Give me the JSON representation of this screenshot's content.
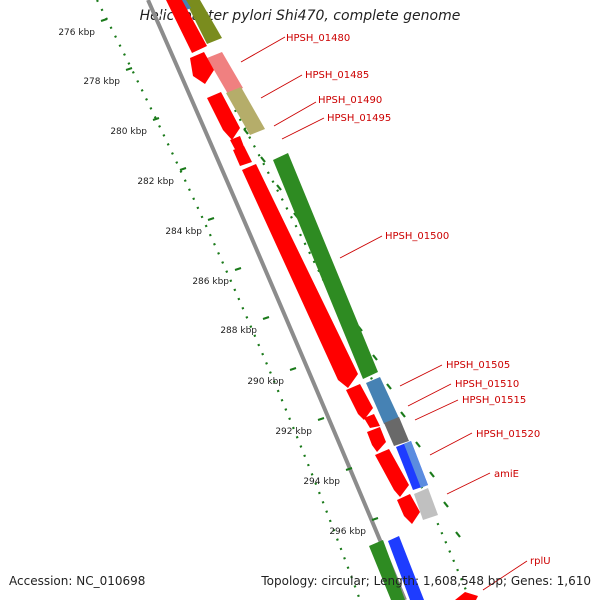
{
  "title": "Helicobacter pylori Shi470, complete genome",
  "footer": {
    "accession": "Accession: NC_010698",
    "summary": "Topology: circular; Length: 1,608,548 bp; Genes: 1,610"
  },
  "axis": {
    "unit": "kbp",
    "ticks": [
      {
        "label": "276 kbp",
        "kbp": 276
      },
      {
        "label": "278 kbp",
        "kbp": 278
      },
      {
        "label": "280 kbp",
        "kbp": 280
      },
      {
        "label": "282 kbp",
        "kbp": 282
      },
      {
        "label": "284 kbp",
        "kbp": 284
      },
      {
        "label": "286 kbp",
        "kbp": 286
      },
      {
        "label": "288 kbp",
        "kbp": 288
      },
      {
        "label": "290 kbp",
        "kbp": 290
      },
      {
        "label": "292 kbp",
        "kbp": 292
      },
      {
        "label": "294 kbp",
        "kbp": 294
      },
      {
        "label": "296 kbp",
        "kbp": 296
      }
    ]
  },
  "genes": [
    {
      "label": "HPSH_01480",
      "color": "#7a8c1e"
    },
    {
      "label": "HPSH_01485",
      "color": "#f08080"
    },
    {
      "label": "HPSH_01490",
      "color": "#b5ad6a"
    },
    {
      "label": "HPSH_01495",
      "color": "#ff0000"
    },
    {
      "label": "HPSH_01500",
      "color": "#2e8b22"
    },
    {
      "label": "HPSH_01505",
      "color": "#4682b4"
    },
    {
      "label": "HPSH_01510",
      "color": "#ff0000"
    },
    {
      "label": "HPSH_01515",
      "color": "#696969"
    },
    {
      "label": "HPSH_01520",
      "color": "#1e3cff"
    },
    {
      "label": "amiE",
      "color": "#c0c0c0"
    },
    {
      "label": "rplU",
      "color": "#ff0000"
    }
  ],
  "colors": {
    "label": "#cc0000",
    "backbone": "#8c8c8c",
    "ruler": "#1a7a1a",
    "cds_forward": "#2e8b22",
    "cds_reverse": "#ff0000"
  }
}
